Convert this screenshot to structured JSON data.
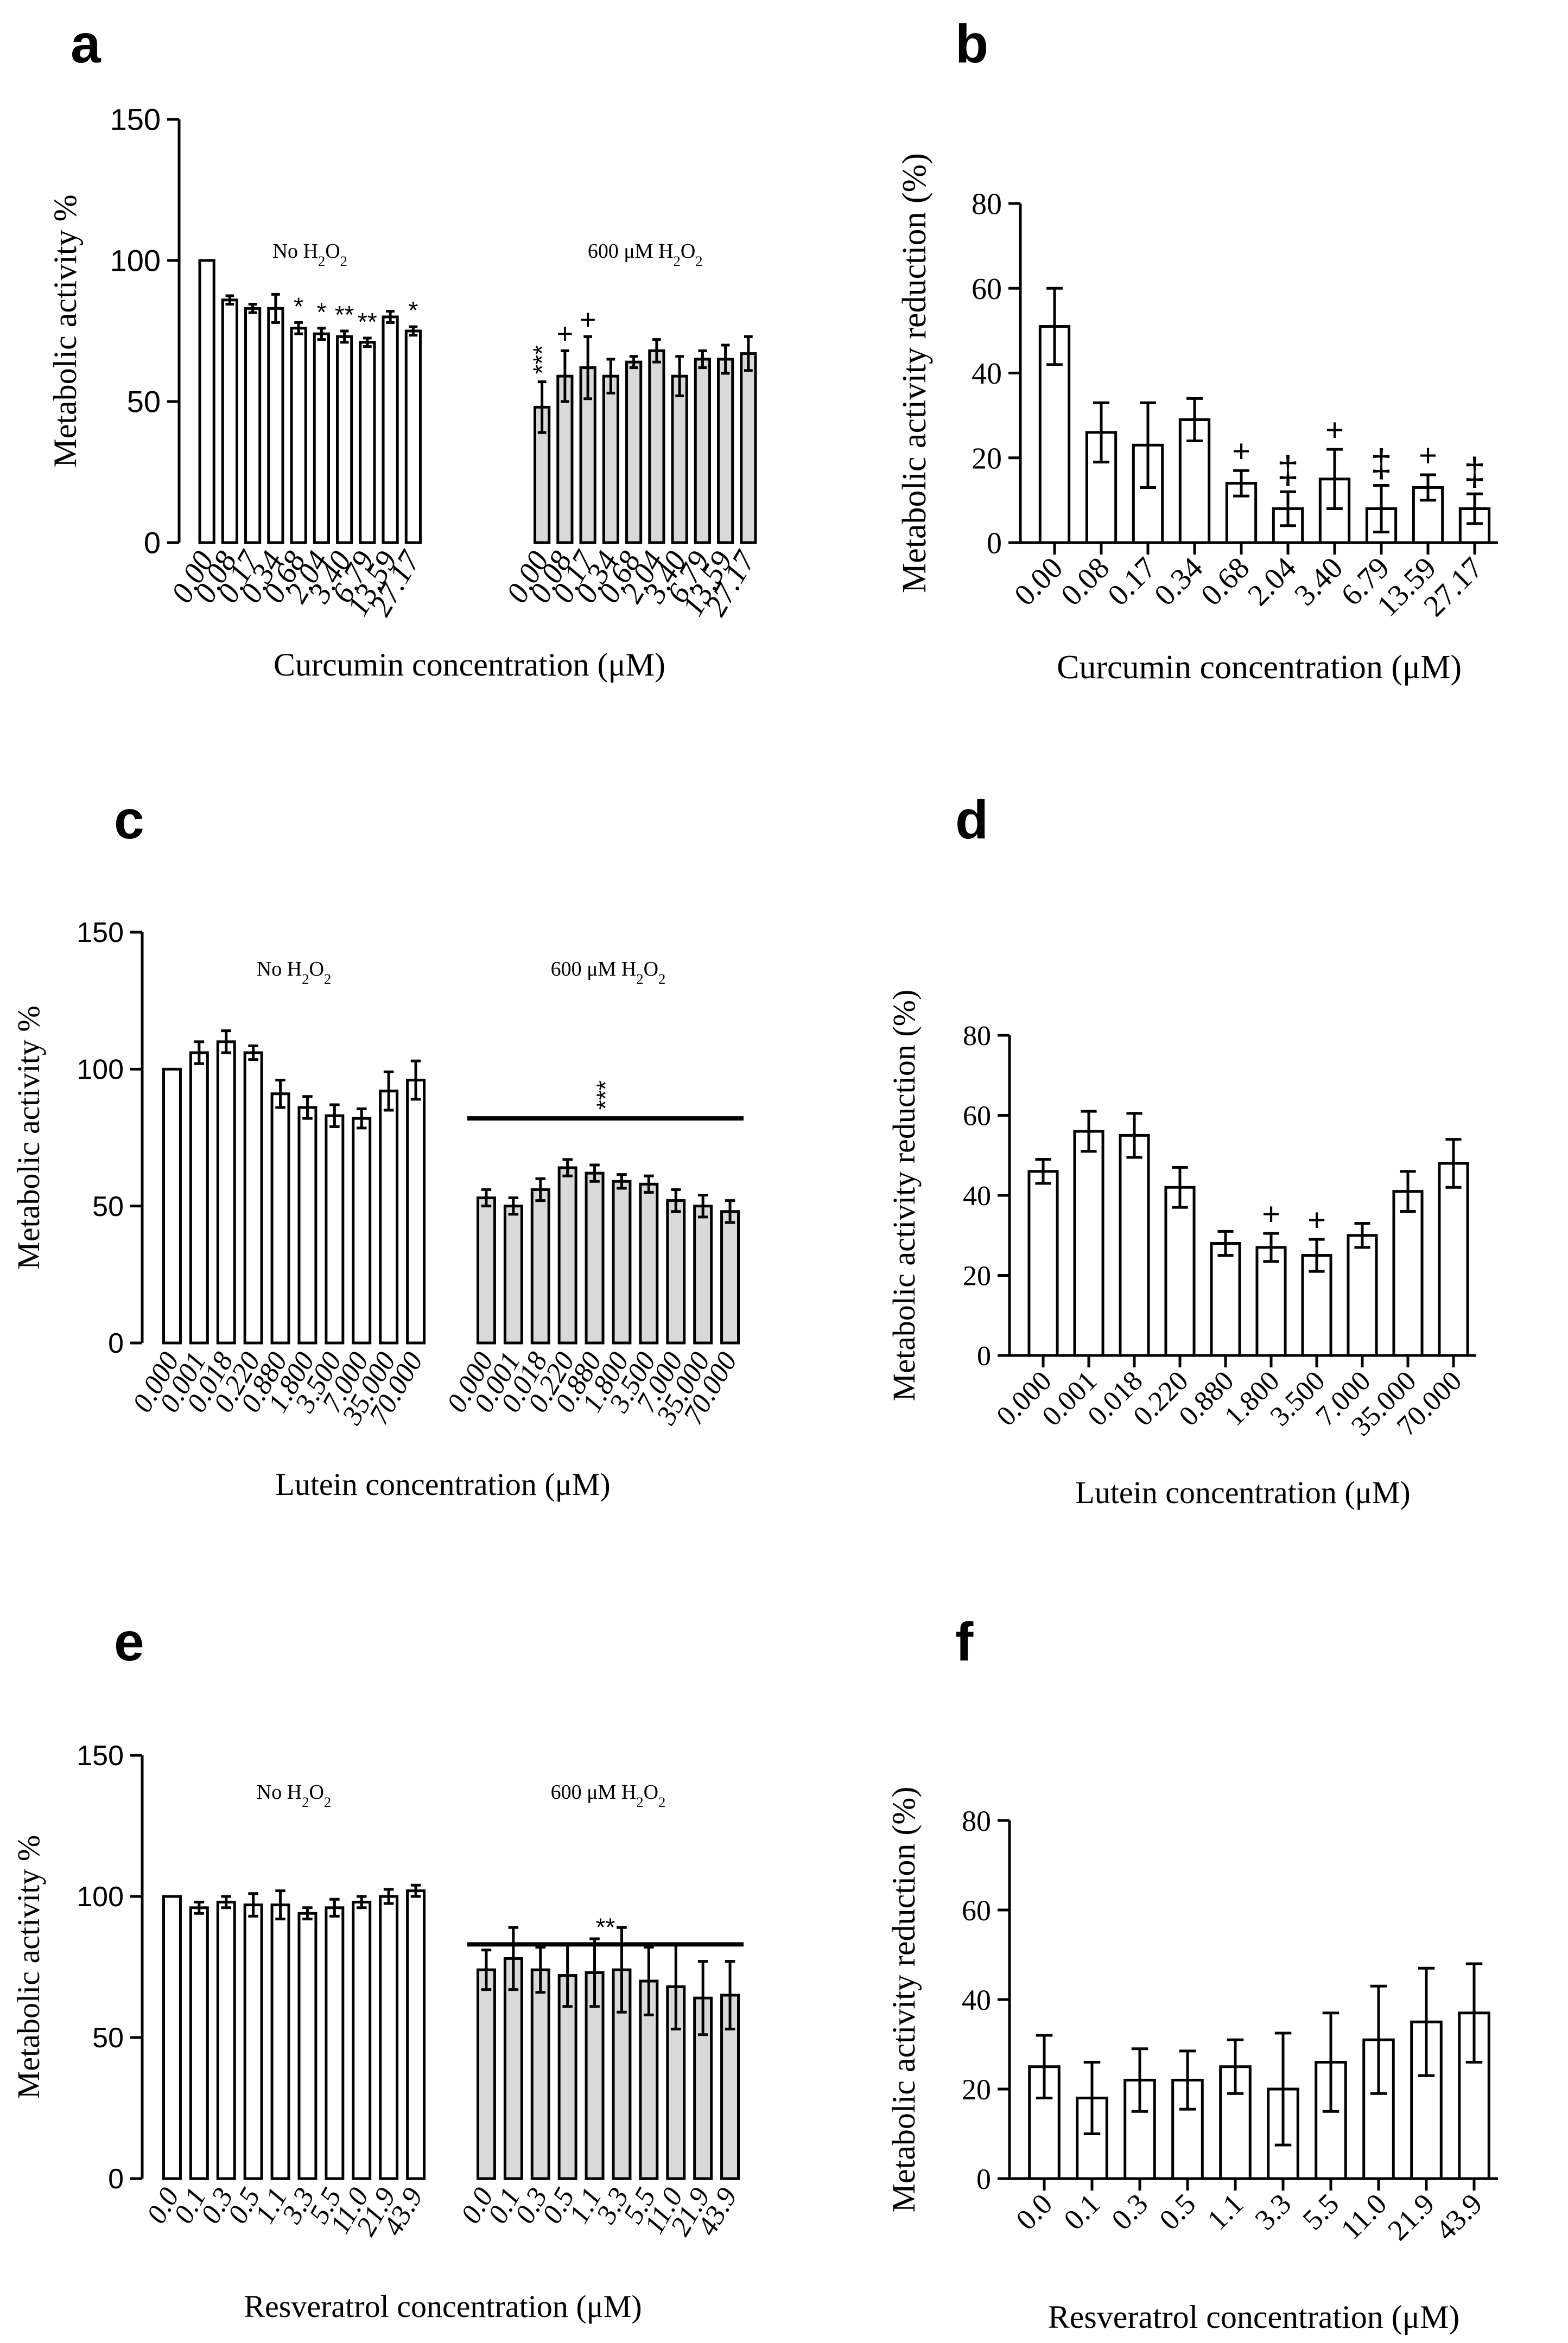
{
  "colors": {
    "bar_no_h2o2": "#ffffff",
    "bar_h2o2": "#d9d9d9",
    "stroke": "#000000"
  },
  "chart_data": [
    {
      "panel": "a",
      "type": "bar",
      "ylabel": "Metabolic activity %",
      "xlabel": "Curcumin concentration (μM)",
      "ylim": [
        0,
        150
      ],
      "yticks": [
        "0",
        "50",
        "100",
        "150"
      ],
      "group_labels": [
        "No H2O2",
        "600 μM H2O2"
      ],
      "series": [
        {
          "name": "No H2O2",
          "color": "#ffffff",
          "categories": [
            "0.00",
            "0.08",
            "0.17",
            "0.34",
            "0.68",
            "2.04",
            "3.40",
            "6.79",
            "13.59",
            "27.17"
          ],
          "values": [
            100,
            86,
            83,
            83,
            76,
            74,
            73,
            71,
            80,
            75
          ],
          "errors": [
            0,
            1.5,
            1.5,
            5,
            2,
            2,
            2,
            1.5,
            2,
            1.5
          ],
          "marks": [
            "",
            "",
            "",
            "",
            "*",
            "*",
            "**",
            "**",
            "",
            "*"
          ]
        },
        {
          "name": "600 μM H2O2",
          "color": "#d9d9d9",
          "categories": [
            "0.00",
            "0.08",
            "0.17",
            "0.34",
            "0.68",
            "2.04",
            "3.40",
            "6.79",
            "13.59",
            "27.17"
          ],
          "values": [
            48,
            59,
            62,
            59,
            64,
            68,
            59,
            65,
            65,
            67
          ],
          "errors": [
            9,
            9,
            11,
            6,
            2,
            4,
            7,
            3,
            5,
            6
          ],
          "marks": [
            "***",
            "+",
            "+",
            "",
            "",
            "",
            "",
            "",
            "",
            ""
          ]
        }
      ]
    },
    {
      "panel": "b",
      "type": "bar",
      "ylabel": "Metabolic activity reduction (%)",
      "xlabel": "Curcumin concentration (μM)",
      "ylim": [
        0,
        80
      ],
      "yticks": [
        "0",
        "20",
        "40",
        "60",
        "80"
      ],
      "categories": [
        "0.00",
        "0.08",
        "0.17",
        "0.34",
        "0.68",
        "2.04",
        "3.40",
        "6.79",
        "13.59",
        "27.17"
      ],
      "values": [
        51,
        26,
        23,
        29,
        14,
        8,
        15,
        8,
        13,
        8
      ],
      "errors": [
        9,
        7,
        10,
        5,
        3,
        4,
        7,
        5.5,
        3,
        3.5
      ],
      "marks": [
        "",
        "",
        "",
        "",
        "+",
        "‡",
        "+",
        "‡",
        "+",
        "‡"
      ]
    },
    {
      "panel": "c",
      "type": "bar",
      "ylabel": "Metabolic activity %",
      "xlabel": "Lutein concentration (μM)",
      "ylim": [
        0,
        150
      ],
      "yticks": [
        "0",
        "50",
        "100",
        "150"
      ],
      "group_labels": [
        "No H2O2",
        "600 μM H2O2"
      ],
      "bracket_mark": "***",
      "series": [
        {
          "name": "No H2O2",
          "color": "#ffffff",
          "categories": [
            "0.000",
            "0.001",
            "0.018",
            "0.220",
            "0.880",
            "1.800",
            "3.500",
            "7.000",
            "35.000",
            "70.000"
          ],
          "values": [
            100,
            106,
            110,
            106,
            91,
            86,
            83,
            82,
            92,
            96
          ],
          "errors": [
            0,
            4,
            4,
            2.5,
            5,
            4,
            4,
            3.5,
            7,
            7
          ],
          "marks": [
            "",
            "",
            "",
            "",
            "",
            "",
            "",
            "",
            "",
            ""
          ]
        },
        {
          "name": "600 μM H2O2",
          "color": "#d9d9d9",
          "categories": [
            "0.000",
            "0.001",
            "0.018",
            "0.220",
            "0.880",
            "1.800",
            "3.500",
            "7.000",
            "35.000",
            "70.000"
          ],
          "values": [
            53,
            50,
            56,
            64,
            62,
            59,
            58,
            52,
            50,
            48
          ],
          "errors": [
            3,
            3,
            4,
            3,
            3,
            2.5,
            3,
            4,
            4,
            4
          ],
          "marks": [
            "",
            "",
            "",
            "",
            "",
            "",
            "",
            "",
            "",
            ""
          ]
        }
      ]
    },
    {
      "panel": "d",
      "type": "bar",
      "ylabel": "Metabolic activity reduction (%)",
      "xlabel": "Lutein concentration (μM)",
      "ylim": [
        0,
        80
      ],
      "yticks": [
        "0",
        "20",
        "40",
        "60",
        "80"
      ],
      "categories": [
        "0.000",
        "0.001",
        "0.018",
        "0.220",
        "0.880",
        "1.800",
        "3.500",
        "7.000",
        "35.000",
        "70.000"
      ],
      "values": [
        46,
        56,
        55,
        42,
        28,
        27,
        25,
        30,
        41,
        48
      ],
      "errors": [
        3,
        5,
        5.5,
        5,
        3,
        3.5,
        4,
        3,
        5,
        6
      ],
      "marks": [
        "",
        "",
        "",
        "",
        "",
        "+",
        "+",
        "",
        "",
        ""
      ]
    },
    {
      "panel": "e",
      "type": "bar",
      "ylabel": "Metabolic activity %",
      "xlabel": "Resveratrol concentration (μM)",
      "ylim": [
        0,
        150
      ],
      "yticks": [
        "0",
        "50",
        "100",
        "150"
      ],
      "group_labels": [
        "No H2O2",
        "600 μM H2O2"
      ],
      "bracket_mark": "**",
      "series": [
        {
          "name": "No H2O2",
          "color": "#ffffff",
          "categories": [
            "0.0",
            "0.1",
            "0.3",
            "0.5",
            "1.1",
            "3.3",
            "5.5",
            "11.0",
            "21.9",
            "43.9"
          ],
          "values": [
            100,
            96,
            98,
            97,
            97,
            94,
            96,
            98,
            100,
            102
          ],
          "errors": [
            0,
            2,
            2,
            4,
            5,
            2,
            3,
            2,
            2.5,
            2
          ],
          "marks": [
            "",
            "",
            "",
            "",
            "",
            "",
            "",
            "",
            "",
            ""
          ]
        },
        {
          "name": "600 μM H2O2",
          "color": "#d9d9d9",
          "categories": [
            "0.0",
            "0.1",
            "0.3",
            "0.5",
            "1.1",
            "3.3",
            "5.5",
            "11.0",
            "21.9",
            "43.9"
          ],
          "values": [
            74,
            78,
            74,
            72,
            73,
            74,
            70,
            68,
            64,
            65
          ],
          "errors": [
            7,
            11,
            8,
            11,
            12,
            15,
            12,
            15,
            13,
            12
          ],
          "marks": [
            "",
            "",
            "",
            "",
            "",
            "",
            "",
            "",
            "",
            ""
          ]
        }
      ]
    },
    {
      "panel": "f",
      "type": "bar",
      "ylabel": "Metabolic activity reduction (%)",
      "xlabel": "Resveratrol concentration (μM)",
      "ylim": [
        0,
        80
      ],
      "yticks": [
        "0",
        "20",
        "40",
        "60",
        "80"
      ],
      "categories": [
        "0.0",
        "0.1",
        "0.3",
        "0.5",
        "1.1",
        "3.3",
        "5.5",
        "11.0",
        "21.9",
        "43.9"
      ],
      "values": [
        25,
        18,
        22,
        22,
        25,
        20,
        26,
        31,
        35,
        37
      ],
      "errors": [
        7,
        8,
        7,
        6.5,
        6,
        12.5,
        11,
        12,
        12,
        11
      ],
      "marks": [
        "",
        "",
        "",
        "",
        "",
        "",
        "",
        "",
        "",
        ""
      ]
    }
  ]
}
